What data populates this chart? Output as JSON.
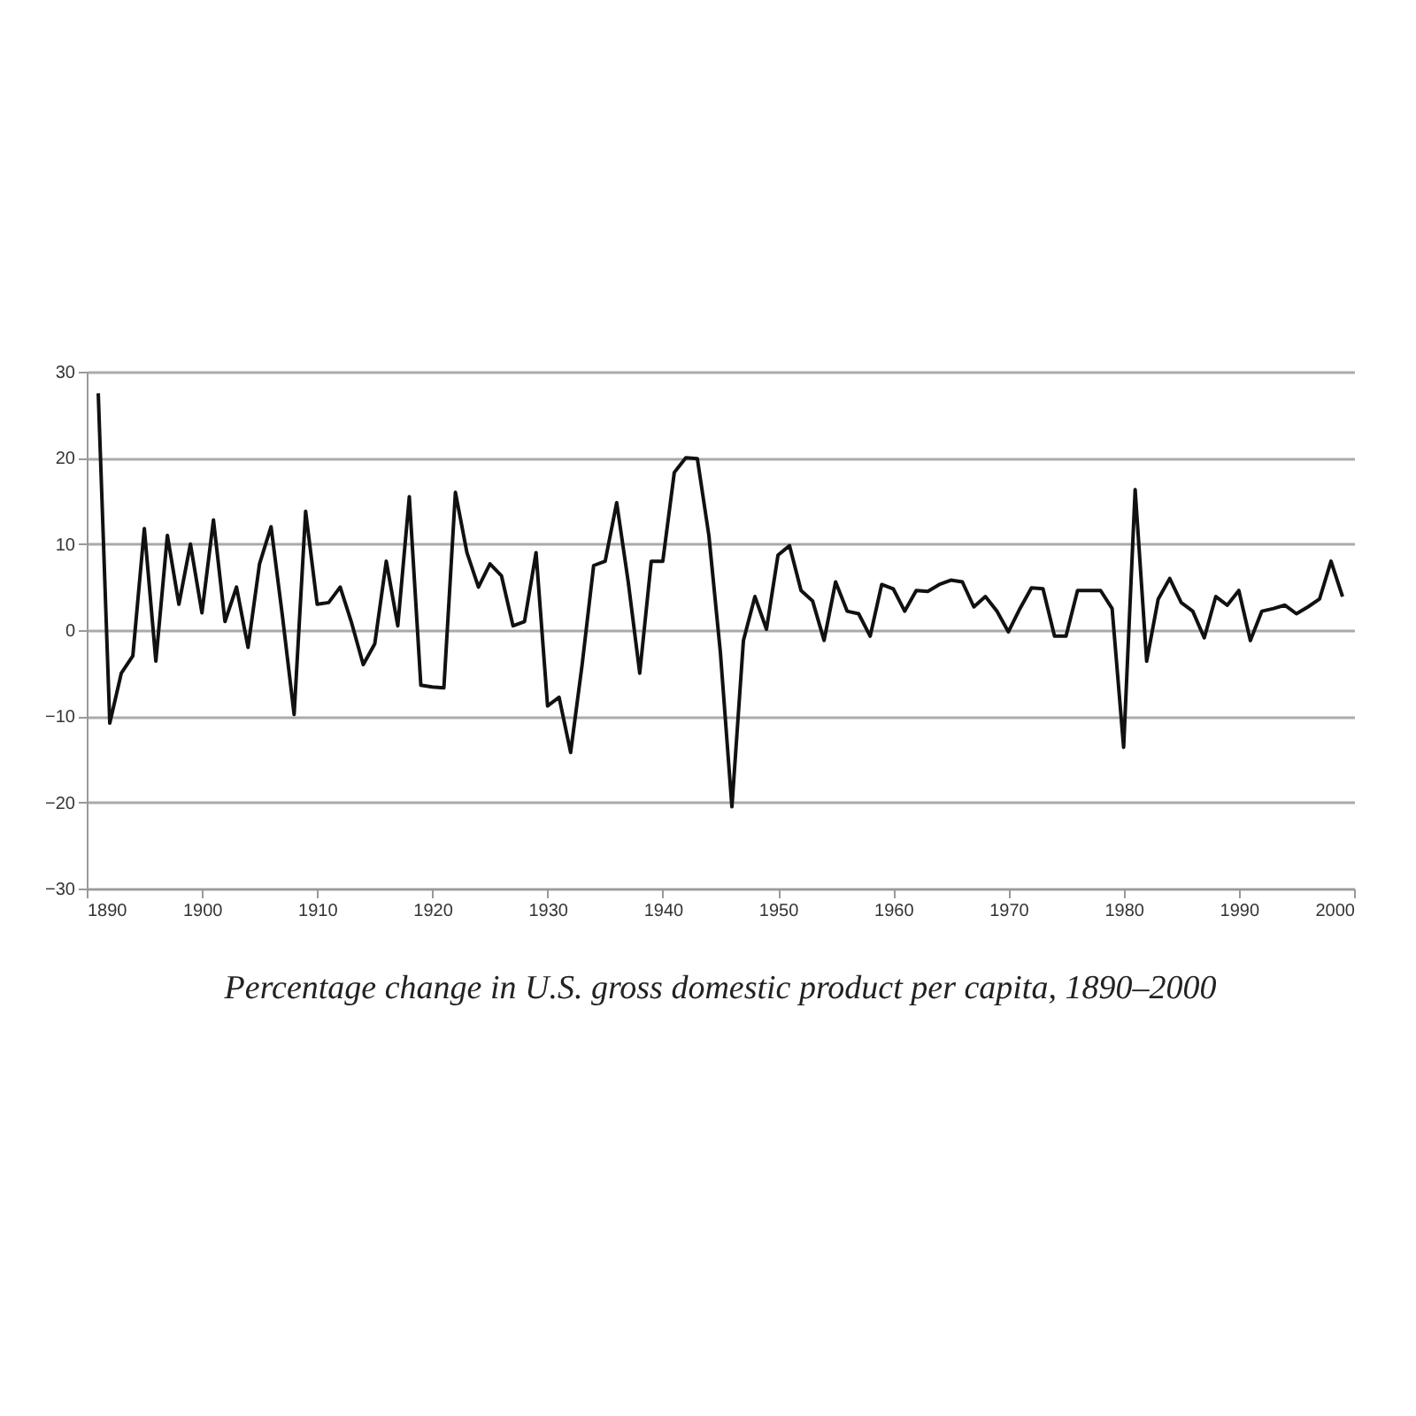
{
  "chart_data": {
    "type": "line",
    "title": "Percentage change in U.S. gross domestic product per capita, 1890–2000",
    "x": [
      1891,
      1892,
      1893,
      1894,
      1895,
      1896,
      1897,
      1898,
      1899,
      1900,
      1901,
      1902,
      1903,
      1904,
      1905,
      1906,
      1907,
      1908,
      1909,
      1910,
      1911,
      1912,
      1913,
      1914,
      1915,
      1916,
      1917,
      1918,
      1919,
      1920,
      1921,
      1922,
      1923,
      1924,
      1925,
      1926,
      1927,
      1928,
      1929,
      1930,
      1931,
      1932,
      1933,
      1934,
      1935,
      1936,
      1937,
      1938,
      1939,
      1940,
      1941,
      1942,
      1943,
      1944,
      1945,
      1946,
      1947,
      1948,
      1949,
      1950,
      1951,
      1952,
      1953,
      1954,
      1955,
      1956,
      1957,
      1958,
      1959,
      1960,
      1961,
      1962,
      1963,
      1964,
      1965,
      1966,
      1967,
      1968,
      1969,
      1970,
      1971,
      1972,
      1973,
      1974,
      1975,
      1976,
      1977,
      1978,
      1979,
      1980,
      1981,
      1982,
      1983,
      1984,
      1985,
      1986,
      1987,
      1988,
      1989,
      1990,
      1991,
      1992,
      1993,
      1994,
      1995,
      1996,
      1997,
      1998,
      1999
    ],
    "series": [
      {
        "color": "#111111",
        "values": [
          27.5,
          -10.8,
          -5,
          -3,
          11.8,
          -3.6,
          11,
          3,
          10,
          2,
          12.8,
          1,
          5,
          -2,
          7.7,
          12,
          1.5,
          -9.8,
          13.8,
          3,
          3.2,
          5,
          0.8,
          -4,
          -1.6,
          8,
          0.5,
          15.5,
          -6.4,
          -6.6,
          -6.7,
          16,
          9,
          5,
          7.7,
          6.3,
          0.5,
          1,
          9,
          -8.8,
          -7.8,
          -14.2,
          -4,
          7.5,
          8,
          14.8,
          5.6,
          -5,
          8,
          8,
          18.3,
          20,
          19.9,
          11,
          -2.6,
          -20.5,
          -1.2,
          3.9,
          0.1,
          8.7,
          9.8,
          4.6,
          3.4,
          -1.2,
          5.6,
          2.2,
          1.9,
          -0.7,
          5.3,
          4.8,
          2.2,
          4.6,
          4.5,
          5.3,
          5.8,
          5.6,
          2.7,
          3.9,
          2.2,
          -0.2,
          2.5,
          4.9,
          4.8,
          -0.7,
          -0.7,
          4.6,
          4.6,
          4.6,
          2.5,
          -13.6,
          16.3,
          -3.6,
          3.6,
          6,
          3.2,
          2.2,
          -0.9,
          3.9,
          2.9,
          4.6,
          -1.2,
          2.2,
          2.5,
          2.9,
          1.9,
          2.7,
          3.6,
          8,
          3.9
        ]
      }
    ],
    "xlim": [
      1890,
      2000
    ],
    "xticks": [
      1890,
      1900,
      1910,
      1920,
      1930,
      1940,
      1950,
      1960,
      1970,
      1980,
      1990,
      2000
    ],
    "ylim": [
      -30,
      30
    ],
    "yticks": [
      -30,
      -20,
      -10,
      0,
      10,
      20,
      30
    ],
    "grid": "y",
    "legend": false,
    "marker": "none",
    "line_style": "solid"
  }
}
